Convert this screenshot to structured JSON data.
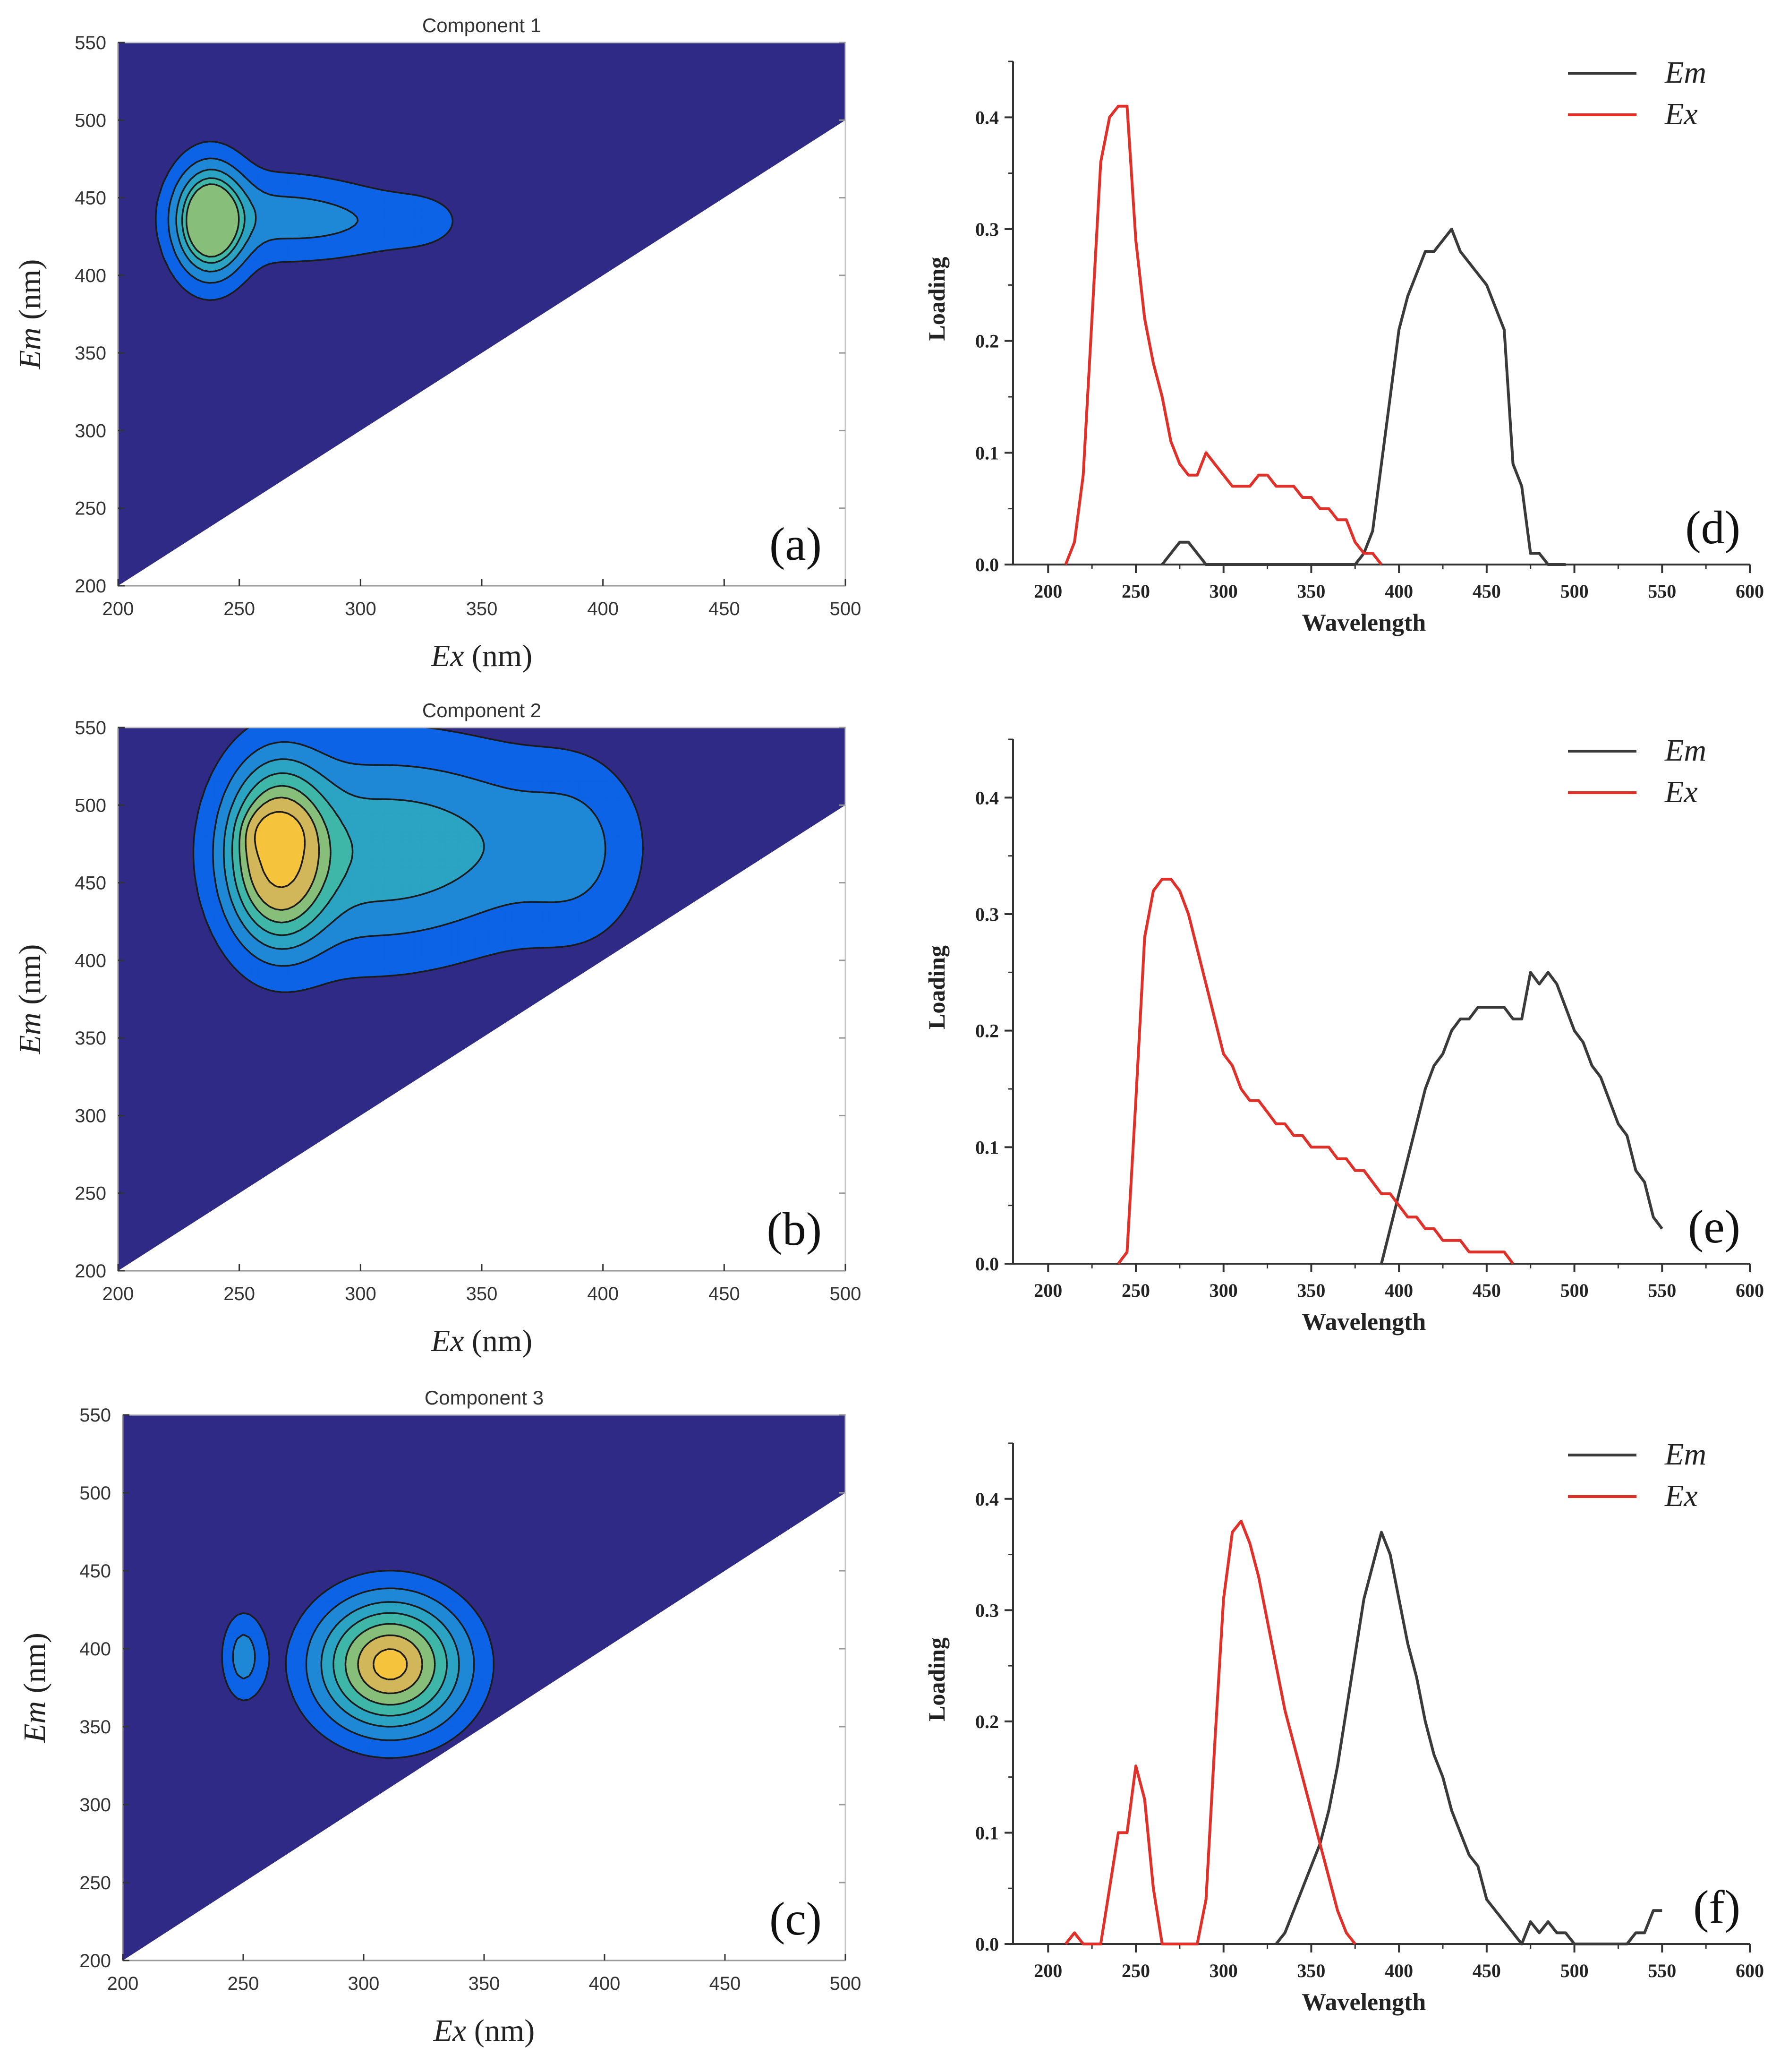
{
  "figure": {
    "colors": {
      "background": "#2E2A85",
      "level1": "#0D63E6",
      "level2": "#1E88D6",
      "level3": "#2BA3C2",
      "level4": "#3FB7A8",
      "level5": "#86BE7A",
      "level6": "#D2B65A",
      "level7": "#F6C43C",
      "level8": "#FFE75A",
      "em_line": "#3A3A3A",
      "ex_line": "#E0302A",
      "axis": "#333333"
    }
  },
  "chart_data": [
    {
      "type": "contour",
      "id": "a",
      "title": "Component 1",
      "panel_label": "(a)",
      "xlabel_var": "Ex",
      "xlabel_unit": " (nm)",
      "ylabel_var": "Em",
      "ylabel_unit": " (nm)",
      "xlim": [
        200,
        500
      ],
      "ylim": [
        200,
        550
      ],
      "xticks": [
        200,
        250,
        300,
        350,
        400,
        450,
        500
      ],
      "yticks": [
        200,
        250,
        300,
        350,
        400,
        450,
        500,
        550
      ],
      "blobs": [
        {
          "cx": 238,
          "cy": 435,
          "sx": 9,
          "sy": 22,
          "amp": 1.0
        },
        {
          "cx": 262,
          "cy": 438,
          "sx": 22,
          "sy": 18,
          "amp": 0.22
        },
        {
          "cx": 295,
          "cy": 435,
          "sx": 20,
          "sy": 15,
          "amp": 0.14
        },
        {
          "cx": 325,
          "cy": 435,
          "sx": 12,
          "sy": 12,
          "amp": 0.1
        }
      ],
      "levels": [
        0.07,
        0.2,
        0.35,
        0.5,
        0.62
      ]
    },
    {
      "type": "contour",
      "id": "b",
      "title": "Component 2",
      "panel_label": "(b)",
      "xlabel_var": "Ex",
      "xlabel_unit": " (nm)",
      "ylabel_var": "Em",
      "ylabel_unit": " (nm)",
      "xlim": [
        200,
        500
      ],
      "ylim": [
        200,
        550
      ],
      "xticks": [
        200,
        250,
        300,
        350,
        400,
        450,
        500
      ],
      "yticks": [
        200,
        250,
        300,
        350,
        400,
        450,
        500,
        550
      ],
      "blobs": [
        {
          "cx": 266,
          "cy": 468,
          "sx": 13,
          "sy": 36,
          "amp": 1.0
        },
        {
          "cx": 265,
          "cy": 482,
          "sx": 7,
          "sy": 9,
          "amp": 0.35
        },
        {
          "cx": 300,
          "cy": 470,
          "sx": 35,
          "sy": 45,
          "amp": 0.36
        },
        {
          "cx": 355,
          "cy": 475,
          "sx": 35,
          "sy": 40,
          "amp": 0.2
        },
        {
          "cx": 390,
          "cy": 470,
          "sx": 16,
          "sy": 38,
          "amp": 0.14
        }
      ],
      "levels": [
        0.08,
        0.2,
        0.33,
        0.47,
        0.62,
        0.78,
        1.05
      ]
    },
    {
      "type": "contour",
      "id": "c",
      "title": "Component 3",
      "panel_label": "(c)",
      "xlabel_var": "Ex",
      "xlabel_unit": " (nm)",
      "ylabel_var": "Em",
      "ylabel_unit": " (nm)",
      "xlim": [
        200,
        500
      ],
      "ylim": [
        200,
        550
      ],
      "xticks": [
        200,
        250,
        300,
        350,
        400,
        450,
        500
      ],
      "yticks": [
        200,
        250,
        300,
        350,
        400,
        450,
        500,
        550
      ],
      "blobs": [
        {
          "cx": 311,
          "cy": 390,
          "sx": 20,
          "sy": 28,
          "amp": 1.0
        },
        {
          "cx": 250,
          "cy": 395,
          "sx": 6,
          "sy": 19,
          "amp": 0.28
        }
      ],
      "levels": [
        0.1,
        0.22,
        0.36,
        0.5,
        0.65,
        0.8,
        0.94
      ]
    },
    {
      "type": "line",
      "id": "d",
      "panel_label": "(d)",
      "xlabel": "Wavelength",
      "ylabel": "Loading",
      "xlim": [
        180,
        600
      ],
      "ylim": [
        0,
        0.45
      ],
      "xticks": [
        200,
        250,
        300,
        350,
        400,
        450,
        500,
        550,
        600
      ],
      "yticks": [
        0.0,
        0.1,
        0.2,
        0.3,
        0.4
      ],
      "legend": [
        "Em",
        "Ex"
      ],
      "series": [
        {
          "name": "Em",
          "x": [
            265,
            270,
            275,
            280,
            285,
            290,
            375,
            380,
            385,
            390,
            395,
            400,
            405,
            410,
            415,
            420,
            425,
            430,
            435,
            440,
            445,
            450,
            455,
            460,
            465,
            470,
            475,
            480,
            485,
            490,
            495
          ],
          "y": [
            0,
            0.01,
            0.02,
            0.02,
            0.01,
            0,
            0,
            0.01,
            0.03,
            0.09,
            0.15,
            0.21,
            0.24,
            0.26,
            0.28,
            0.28,
            0.29,
            0.3,
            0.28,
            0.27,
            0.26,
            0.25,
            0.23,
            0.21,
            0.09,
            0.07,
            0.01,
            0.01,
            0,
            0,
            0
          ]
        },
        {
          "name": "Ex",
          "x": [
            210,
            215,
            220,
            225,
            230,
            235,
            240,
            245,
            250,
            255,
            260,
            265,
            270,
            275,
            280,
            285,
            290,
            295,
            300,
            305,
            310,
            315,
            320,
            325,
            330,
            335,
            340,
            345,
            350,
            355,
            360,
            365,
            370,
            375,
            380,
            385,
            390
          ],
          "y": [
            0,
            0.02,
            0.08,
            0.22,
            0.36,
            0.4,
            0.41,
            0.41,
            0.29,
            0.22,
            0.18,
            0.15,
            0.11,
            0.09,
            0.08,
            0.08,
            0.1,
            0.09,
            0.08,
            0.07,
            0.07,
            0.07,
            0.08,
            0.08,
            0.07,
            0.07,
            0.07,
            0.06,
            0.06,
            0.05,
            0.05,
            0.04,
            0.04,
            0.02,
            0.01,
            0.01,
            0
          ]
        }
      ]
    },
    {
      "type": "line",
      "id": "e",
      "panel_label": "(e)",
      "xlabel": "Wavelength",
      "ylabel": "Loading",
      "xlim": [
        180,
        600
      ],
      "ylim": [
        0,
        0.45
      ],
      "xticks": [
        200,
        250,
        300,
        350,
        400,
        450,
        500,
        550,
        600
      ],
      "yticks": [
        0.0,
        0.1,
        0.2,
        0.3,
        0.4
      ],
      "legend": [
        "Em",
        "Ex"
      ],
      "series": [
        {
          "name": "Em",
          "x": [
            390,
            395,
            400,
            405,
            410,
            415,
            420,
            425,
            430,
            435,
            440,
            445,
            450,
            455,
            460,
            465,
            470,
            475,
            480,
            485,
            490,
            495,
            500,
            505,
            510,
            515,
            520,
            525,
            530,
            535,
            540,
            545,
            550
          ],
          "y": [
            0,
            0.03,
            0.06,
            0.09,
            0.12,
            0.15,
            0.17,
            0.18,
            0.2,
            0.21,
            0.21,
            0.22,
            0.22,
            0.22,
            0.22,
            0.21,
            0.21,
            0.25,
            0.24,
            0.25,
            0.24,
            0.22,
            0.2,
            0.19,
            0.17,
            0.16,
            0.14,
            0.12,
            0.11,
            0.08,
            0.07,
            0.04,
            0.03
          ]
        },
        {
          "name": "Ex",
          "x": [
            240,
            245,
            250,
            255,
            260,
            265,
            270,
            275,
            280,
            285,
            290,
            295,
            300,
            305,
            310,
            315,
            320,
            325,
            330,
            335,
            340,
            345,
            350,
            355,
            360,
            365,
            370,
            375,
            380,
            385,
            390,
            395,
            400,
            405,
            410,
            415,
            420,
            425,
            430,
            435,
            440,
            445,
            450,
            455,
            460,
            465
          ],
          "y": [
            0,
            0.01,
            0.14,
            0.28,
            0.32,
            0.33,
            0.33,
            0.32,
            0.3,
            0.27,
            0.24,
            0.21,
            0.18,
            0.17,
            0.15,
            0.14,
            0.14,
            0.13,
            0.12,
            0.12,
            0.11,
            0.11,
            0.1,
            0.1,
            0.1,
            0.09,
            0.09,
            0.08,
            0.08,
            0.07,
            0.06,
            0.06,
            0.05,
            0.04,
            0.04,
            0.03,
            0.03,
            0.02,
            0.02,
            0.02,
            0.01,
            0.01,
            0.01,
            0.01,
            0.01,
            0
          ]
        }
      ]
    },
    {
      "type": "line",
      "id": "f",
      "panel_label": "(f)",
      "xlabel": "Wavelength",
      "ylabel": "Loading",
      "xlim": [
        180,
        600
      ],
      "ylim": [
        0,
        0.45
      ],
      "xticks": [
        200,
        250,
        300,
        350,
        400,
        450,
        500,
        550,
        600
      ],
      "yticks": [
        0.0,
        0.1,
        0.2,
        0.3,
        0.4
      ],
      "legend": [
        "Em",
        "Ex"
      ],
      "series": [
        {
          "name": "Em",
          "x": [
            330,
            335,
            340,
            345,
            350,
            355,
            360,
            365,
            370,
            375,
            380,
            385,
            390,
            395,
            400,
            405,
            410,
            415,
            420,
            425,
            430,
            435,
            440,
            445,
            450,
            455,
            460,
            465,
            470,
            475,
            480,
            485,
            490,
            495,
            500,
            505,
            510,
            515,
            520,
            525,
            530,
            535,
            540,
            545,
            550
          ],
          "y": [
            0,
            0.01,
            0.03,
            0.05,
            0.07,
            0.09,
            0.12,
            0.16,
            0.21,
            0.26,
            0.31,
            0.34,
            0.37,
            0.35,
            0.31,
            0.27,
            0.24,
            0.2,
            0.17,
            0.15,
            0.12,
            0.1,
            0.08,
            0.07,
            0.04,
            0.03,
            0.02,
            0.01,
            0,
            0.02,
            0.01,
            0.02,
            0.01,
            0.01,
            0,
            0,
            0,
            0,
            0,
            0,
            0,
            0.01,
            0.01,
            0.03,
            0.03
          ]
        },
        {
          "name": "Ex",
          "x": [
            210,
            215,
            220,
            225,
            230,
            235,
            240,
            245,
            250,
            255,
            260,
            265,
            270,
            275,
            280,
            285,
            290,
            295,
            300,
            305,
            310,
            315,
            320,
            325,
            330,
            335,
            340,
            345,
            350,
            355,
            360,
            365,
            370,
            375
          ],
          "y": [
            0,
            0.01,
            0,
            0,
            0,
            0.05,
            0.1,
            0.1,
            0.16,
            0.13,
            0.05,
            0,
            0,
            0,
            0,
            0,
            0.04,
            0.18,
            0.31,
            0.37,
            0.38,
            0.36,
            0.33,
            0.29,
            0.25,
            0.21,
            0.18,
            0.15,
            0.12,
            0.09,
            0.06,
            0.03,
            0.01,
            0
          ]
        }
      ]
    }
  ]
}
